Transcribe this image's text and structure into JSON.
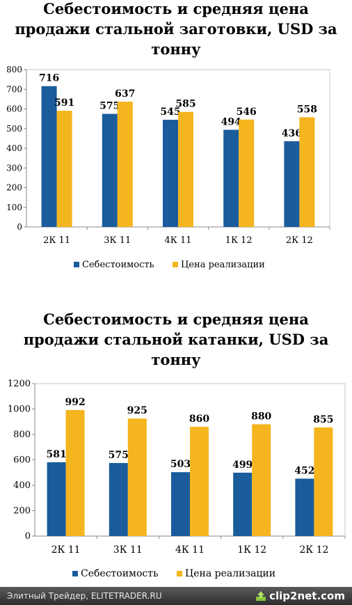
{
  "charts": [
    {
      "title": "Себестоимость и средняя цена\nпродажи стальной заготовки, USD за\nтонну",
      "chart_data": {
        "type": "bar",
        "title": "Себестоимость и средняя цена продажи стальной заготовки, USD за тонну",
        "categories": [
          "2К 11",
          "3К 11",
          "4К 11",
          "1К 12",
          "2К 12"
        ],
        "series": [
          {
            "name": "Себестоимость",
            "values": [
              716,
              575,
              545,
              494,
              436
            ],
            "color": "#1a5c9c"
          },
          {
            "name": "Цена реализации",
            "values": [
              591,
              637,
              585,
              546,
              558
            ],
            "color": "#f5b51e"
          }
        ],
        "ylim": [
          0,
          800
        ],
        "yticks": [
          0,
          100,
          200,
          300,
          400,
          500,
          600,
          700,
          800
        ],
        "grid": false,
        "legend": "bottom"
      }
    },
    {
      "title": "Себестоимость и средняя цена\nпродажи стальной катанки, USD за\nтонну",
      "chart_data": {
        "type": "bar",
        "title": "Себестоимость и средняя цена продажи стальной катанки, USD за тонну",
        "categories": [
          "2К 11",
          "3К 11",
          "4К 11",
          "1К 12",
          "2К 12"
        ],
        "series": [
          {
            "name": "Себестоимость",
            "values": [
              581,
              575,
              503,
              499,
              452
            ],
            "color": "#1a5c9c"
          },
          {
            "name": "Цена реализации",
            "values": [
              992,
              925,
              860,
              880,
              855
            ],
            "color": "#f5b51e"
          }
        ],
        "ylim": [
          0,
          1200
        ],
        "yticks": [
          0,
          200,
          400,
          600,
          800,
          1000,
          1200
        ],
        "grid": false,
        "legend": "bottom"
      }
    }
  ],
  "footer": {
    "text": "Элитный Трейдер, ELITETRADER.RU",
    "brand": "clip2net.com",
    "brand_icon": "arrow-icon"
  }
}
